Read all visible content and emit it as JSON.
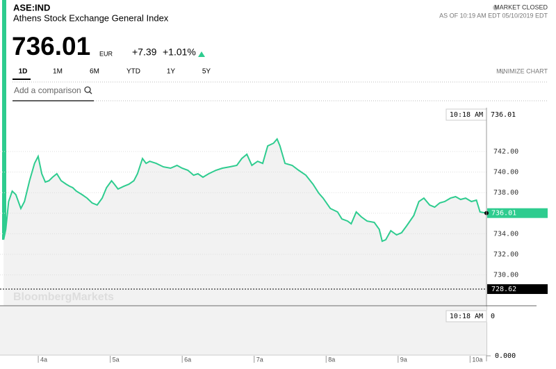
{
  "header": {
    "ticker": "ASE:IND",
    "name": "Athens Stock Exchange General Index",
    "status": "MARKET CLOSED",
    "as_of": "AS OF 10:19 AM EDT 05/10/2019 EDT",
    "price": "736.01",
    "currency": "EUR",
    "change": "+7.39",
    "change_pct": "+1.01%"
  },
  "tabs": [
    "1D",
    "1M",
    "6M",
    "YTD",
    "1Y",
    "5Y"
  ],
  "minimize": "MINIMIZE CHART",
  "comparison_placeholder": "Add a comparison",
  "watermark": "BloombergMarkets",
  "chart_data": {
    "type": "line",
    "color": "#2ecc8f",
    "x": [
      3.47,
      3.5,
      3.54,
      3.59,
      3.64,
      3.71,
      3.76,
      3.83,
      3.9,
      3.95,
      4.0,
      4.05,
      4.1,
      4.15,
      4.21,
      4.27,
      4.34,
      4.39,
      4.43,
      4.48,
      4.56,
      4.63,
      4.7,
      4.77,
      4.84,
      4.9,
      4.97,
      5.01,
      5.06,
      5.14,
      5.21,
      5.28,
      5.33,
      5.4,
      5.45,
      5.5,
      5.59,
      5.69,
      5.79,
      5.88,
      5.95,
      6.03,
      6.11,
      6.17,
      6.24,
      6.32,
      6.42,
      6.51,
      6.61,
      6.71,
      6.78,
      6.85,
      6.92,
      7.0,
      7.07,
      7.14,
      7.22,
      7.27,
      7.31,
      7.38,
      7.48,
      7.57,
      7.67,
      7.77,
      7.85,
      7.91,
      8.01,
      8.11,
      8.17,
      8.25,
      8.3,
      8.37,
      8.44,
      8.52,
      8.62,
      8.69,
      8.73,
      8.78,
      8.85,
      8.93,
      9.0,
      9.07,
      9.17,
      9.24,
      9.31,
      9.39,
      9.46,
      9.53,
      9.6,
      9.68,
      9.75,
      9.82,
      9.89,
      9.97,
      10.04,
      10.09,
      10.18
    ],
    "values": [
      733.42,
      734.43,
      737.14,
      738.15,
      737.81,
      736.46,
      737.14,
      739.16,
      740.85,
      741.53,
      739.84,
      739.03,
      739.16,
      739.5,
      739.84,
      739.16,
      738.82,
      738.62,
      738.49,
      738.15,
      737.81,
      737.47,
      737.0,
      736.8,
      737.47,
      738.49,
      739.16,
      738.82,
      738.35,
      738.62,
      738.82,
      739.16,
      739.84,
      741.32,
      740.85,
      741.05,
      740.85,
      740.51,
      740.38,
      740.65,
      740.38,
      740.18,
      739.7,
      739.84,
      739.5,
      739.84,
      740.18,
      740.38,
      740.51,
      740.65,
      741.32,
      741.73,
      740.65,
      741.05,
      740.85,
      742.54,
      742.81,
      743.22,
      742.54,
      740.85,
      740.65,
      740.18,
      739.7,
      738.82,
      737.95,
      737.47,
      736.46,
      736.12,
      735.45,
      735.24,
      734.97,
      736.12,
      735.65,
      735.24,
      735.11,
      734.43,
      733.28,
      733.42,
      734.3,
      733.89,
      734.1,
      734.77,
      735.78,
      737.14,
      737.47,
      736.8,
      736.59,
      737.0,
      737.14,
      737.47,
      737.61,
      737.34,
      737.47,
      737.14,
      737.27,
      736.12,
      736.01
    ],
    "xlim": [
      3.42,
      10.18
    ],
    "ylim": [
      727,
      746.26
    ],
    "xticks": [
      {
        "value": 4,
        "label": "4a"
      },
      {
        "value": 5,
        "label": "5a"
      },
      {
        "value": 6,
        "label": "6a"
      },
      {
        "value": 7,
        "label": "7a"
      },
      {
        "value": 8,
        "label": "8a"
      },
      {
        "value": 9,
        "label": "9a"
      },
      {
        "value": 10,
        "label": "10a"
      }
    ],
    "yticks": [
      {
        "value": 730,
        "label": "730.00"
      },
      {
        "value": 732,
        "label": "732.00"
      },
      {
        "value": 734,
        "label": "734.00"
      },
      {
        "value": 736,
        "label": "736.00"
      },
      {
        "value": 738,
        "label": "738.00"
      },
      {
        "value": 740,
        "label": "740.00"
      },
      {
        "value": 742,
        "label": "742.00"
      }
    ],
    "grid": true,
    "last_time": "10:18 AM",
    "last_value": 736.01,
    "previous_close": 728.62,
    "volume_time": "10:18 AM",
    "volume_value": 0,
    "volume_tick": {
      "value": 0,
      "label": "0.000"
    }
  }
}
